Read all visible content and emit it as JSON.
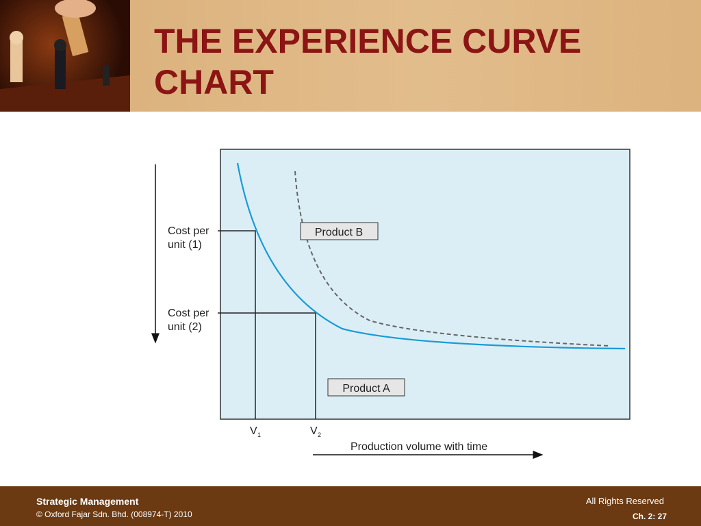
{
  "header": {
    "title": "THE EXPERIENCE CURVE CHART"
  },
  "diagram": {
    "y_labels": [
      [
        "Cost per",
        "unit (1)"
      ],
      [
        "Cost per",
        "unit (2)"
      ]
    ],
    "curve_labels": [
      "Product B",
      "Product A"
    ],
    "x_marks": [
      {
        "letter": "V",
        "sub": "1"
      },
      {
        "letter": "V",
        "sub": "2"
      }
    ],
    "x_axis_label": "Production volume with time"
  },
  "footer": {
    "course": "Strategic Management",
    "copyright": "© Oxford Fajar Sdn. Bhd. (008974-T) 2010",
    "rights": "All Rights Reserved",
    "page": "Ch. 2: 27"
  }
}
